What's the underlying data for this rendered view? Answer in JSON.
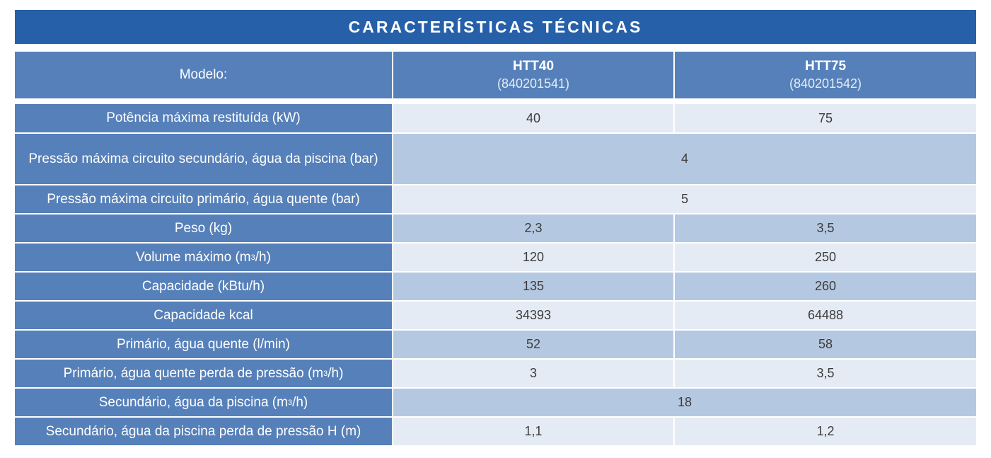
{
  "title": "CARACTERÍSTICAS TÉCNICAS",
  "header": {
    "label": "Modelo:",
    "models": [
      {
        "name": "HTT40",
        "code": "(840201541)"
      },
      {
        "name": "HTT75",
        "code": "(840201542)"
      }
    ]
  },
  "rows": [
    {
      "label": "Potência máxima restituída (kW)",
      "htt40": "40",
      "htt75": "75"
    },
    {
      "label": "Pressão máxima circuito secundário, água da piscina (bar)",
      "shared": "4"
    },
    {
      "label": "Pressão máxima circuito primário, água quente (bar)",
      "shared": "5"
    },
    {
      "label": "Peso (kg)",
      "htt40": "2,3",
      "htt75": "3,5"
    },
    {
      "label_pre": "Volume máximo (m",
      "label_sup": "3",
      "label_post": "/h)",
      "htt40": "120",
      "htt75": "250"
    },
    {
      "label": "Capacidade (kBtu/h)",
      "htt40": "135",
      "htt75": "260"
    },
    {
      "label": "Capacidade kcal",
      "htt40": "34393",
      "htt75": "64488"
    },
    {
      "label": "Primário, água quente (l/min)",
      "htt40": "52",
      "htt75": "58"
    },
    {
      "label_pre": "Primário, água quente perda de pressão (m",
      "label_sup": "3",
      "label_post": "/h)",
      "htt40": "3",
      "htt75": "3,5"
    },
    {
      "label_pre": "Secundário, água da piscina (m",
      "label_sup": "3",
      "label_post": "/h)",
      "shared": "18"
    },
    {
      "label": "Secundário, água da piscina perda de pressão H (m)",
      "htt40": "1,1",
      "htt75": "1,2"
    }
  ]
}
